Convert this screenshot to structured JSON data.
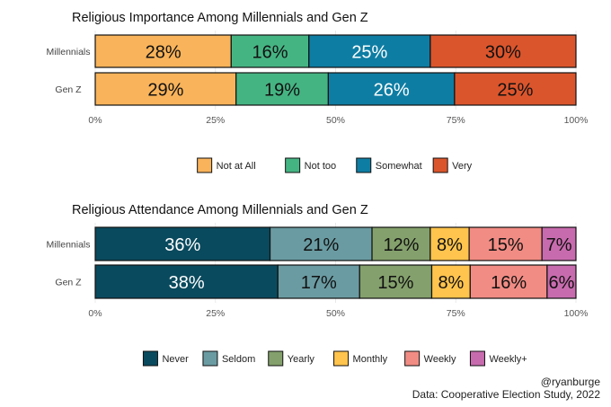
{
  "chart_data": [
    {
      "type": "bar",
      "orientation": "horizontal",
      "stacked": true,
      "title": "Religious Importance Among Millennials and Gen Z",
      "categories": [
        "Millennials",
        "Gen Z"
      ],
      "series": [
        {
          "name": "Not at All",
          "color": "#F9B35A",
          "values": [
            28,
            29
          ]
        },
        {
          "name": "Not too",
          "color": "#45B483",
          "values": [
            16,
            19
          ]
        },
        {
          "name": "Somewhat",
          "color": "#0E7DA3",
          "values": [
            25,
            26
          ]
        },
        {
          "name": "Very",
          "color": "#DB552C",
          "values": [
            30,
            25
          ]
        }
      ],
      "xlim": [
        0,
        100
      ],
      "xticks": [
        "0%",
        "25%",
        "50%",
        "75%",
        "100%"
      ],
      "legend_position": "bottom"
    },
    {
      "type": "bar",
      "orientation": "horizontal",
      "stacked": true,
      "title": "Religious Attendance Among Millennials and Gen Z",
      "categories": [
        "Millennials",
        "Gen Z"
      ],
      "series": [
        {
          "name": "Never",
          "color": "#0A4A5E",
          "values": [
            36,
            38
          ]
        },
        {
          "name": "Seldom",
          "color": "#6A9BA2",
          "values": [
            21,
            17
          ]
        },
        {
          "name": "Yearly",
          "color": "#84A06C",
          "values": [
            12,
            15
          ]
        },
        {
          "name": "Monthly",
          "color": "#FFC44D",
          "values": [
            8,
            8
          ]
        },
        {
          "name": "Weekly",
          "color": "#F18C84",
          "values": [
            15,
            16
          ]
        },
        {
          "name": "Weekly+",
          "color": "#C86BAE",
          "values": [
            7,
            6
          ]
        }
      ],
      "xlim": [
        0,
        100
      ],
      "xticks": [
        "0%",
        "25%",
        "50%",
        "75%",
        "100%"
      ],
      "legend_position": "bottom"
    }
  ],
  "credits": {
    "author": "@ryanburge",
    "source": "Data: Cooperative Election Study, 2022"
  }
}
